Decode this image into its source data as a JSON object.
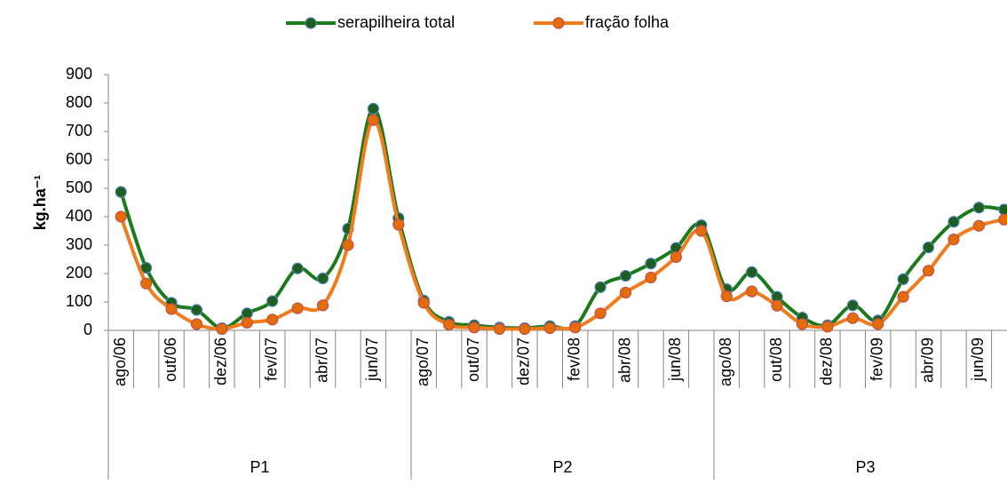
{
  "chart_data": {
    "type": "line",
    "y_label": "kg.ha⁻¹",
    "categories": [
      "ago/06",
      null,
      "out/06",
      null,
      "dez/06",
      null,
      "fev/07",
      null,
      "abr/07",
      null,
      "jun/07",
      null,
      "ago/07",
      null,
      "out/07",
      null,
      "dez/07",
      null,
      "fev/08",
      null,
      "abr/08",
      null,
      "jun/08",
      null,
      "ago/08",
      null,
      "out/08",
      null,
      "dez/08",
      null,
      "fev/09",
      null,
      "abr/09",
      null,
      "jun/09",
      null
    ],
    "groups": [
      "P1",
      "P2",
      "P3"
    ],
    "series": [
      {
        "name": "serapilheira total",
        "color": "#1b7a1b",
        "marker_color": "#1e5f1e",
        "marker_edge": "#4f81bd",
        "values": [
          487,
          220,
          97,
          72,
          8,
          60,
          103,
          218,
          183,
          358,
          780,
          395,
          105,
          30,
          18,
          10,
          8,
          15,
          15,
          152,
          192,
          235,
          290,
          370,
          145,
          205,
          118,
          45,
          18,
          88,
          35,
          180,
          292,
          382,
          432,
          425
        ]
      },
      {
        "name": "fração folha",
        "color": "#f07c1e",
        "marker_color": "#e46c0a",
        "marker_edge": "#c0504d",
        "values": [
          400,
          165,
          75,
          22,
          5,
          27,
          38,
          78,
          88,
          300,
          740,
          372,
          97,
          20,
          10,
          5,
          5,
          8,
          10,
          60,
          133,
          186,
          258,
          350,
          120,
          137,
          87,
          22,
          13,
          43,
          22,
          118,
          210,
          320,
          368,
          390
        ]
      }
    ],
    "ylim": [
      0,
      900
    ],
    "yticks": [
      0,
      100,
      200,
      300,
      400,
      500,
      600,
      700,
      800,
      900
    ]
  }
}
